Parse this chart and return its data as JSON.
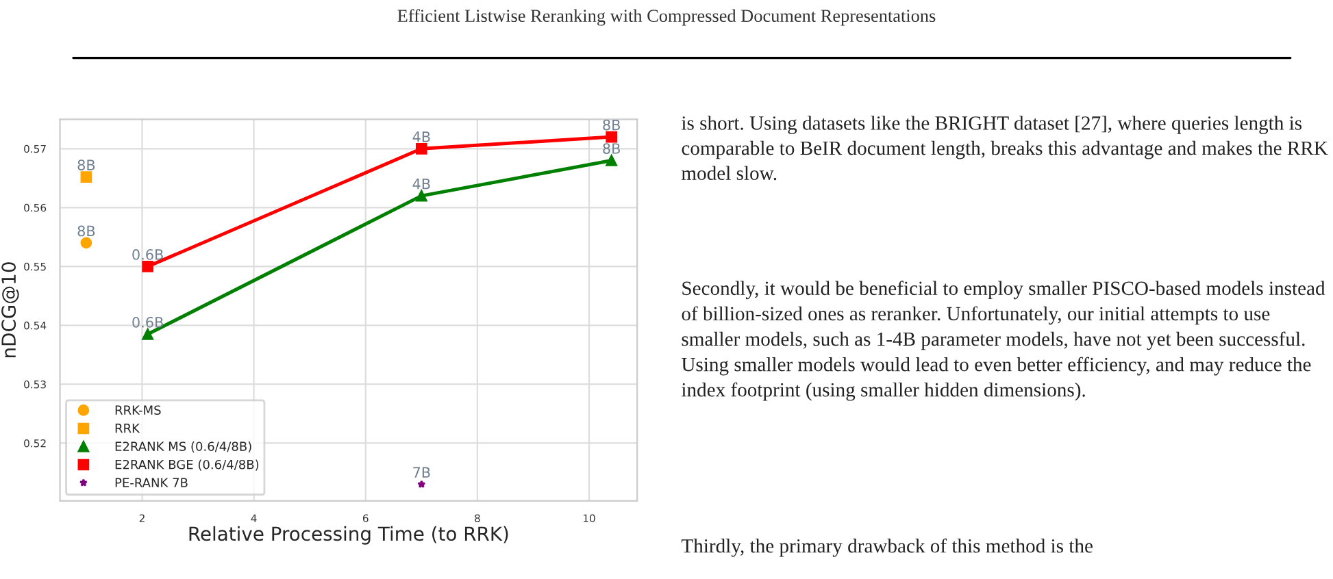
{
  "chart_data": {
    "type": "line",
    "title": "Efficient Listwise Reranking with Compressed Document Representations",
    "xlabel": "Relative Processing Time (to RRK)",
    "ylabel": "nDCG@10",
    "xlim": [
      0.53,
      10.86
    ],
    "xticks": [
      2,
      4,
      6,
      8,
      10
    ],
    "ylim": [
      0.5102,
      0.575
    ],
    "yticks": [
      0.52,
      0.53,
      0.54,
      0.55,
      0.56,
      0.57
    ],
    "grid": true,
    "legend": "bottom left",
    "series": [
      {
        "name": "RRK-MS",
        "type": "scatter",
        "marker": "circle",
        "color": "#ffa500",
        "x": [
          1.0
        ],
        "values": [
          0.554
        ]
      },
      {
        "name": "RRK",
        "type": "scatter",
        "marker": "square",
        "color": "#ffa500",
        "x": [
          1.0
        ],
        "values": [
          0.5652
        ]
      },
      {
        "name": "E2RANK MS (0.6/4/8B)",
        "marker": "triangle",
        "color": "#008000",
        "x": [
          2.1,
          7.0,
          10.4
        ],
        "values": [
          0.5385,
          0.562,
          0.568
        ]
      },
      {
        "name": "E2RANK BGE (0.6/4/8B)",
        "marker": "square",
        "color": "#ff0000",
        "x": [
          2.1,
          7.0,
          10.4
        ],
        "values": [
          0.55,
          0.57,
          0.572
        ]
      },
      {
        "name": "PE-RANK 7B",
        "type": "scatter",
        "marker": "star",
        "color": "#800080",
        "x": [
          7.0
        ],
        "values": [
          0.513
        ]
      }
    ],
    "annotations": [
      {
        "text": "8B",
        "x": 1.0,
        "y": 0.554
      },
      {
        "text": "8B",
        "x": 1.0,
        "y": 0.5652
      },
      {
        "text": "0.6B",
        "x": 2.1,
        "y": 0.5385
      },
      {
        "text": "4B",
        "x": 7.0,
        "y": 0.562
      },
      {
        "text": "8B",
        "x": 10.4,
        "y": 0.568
      },
      {
        "text": "0.6B",
        "x": 2.1,
        "y": 0.55
      },
      {
        "text": "4B",
        "x": 7.0,
        "y": 0.57
      },
      {
        "text": "8B",
        "x": 10.4,
        "y": 0.572
      },
      {
        "text": "7B",
        "x": 7.0,
        "y": 0.513
      },
      "is short. Using datasets like the BRIGHT dataset [27], where queries length is comparable to BeIR document length, breaks this advantage and makes the RRK model slow.",
      "Secondly, it would be beneficial to employ smaller PISCO-based models instead of billion-sized ones as reranker. Unfortunately, our initial attempts to use smaller models, such as 1-4B parameter models, have not yet been successful. Using smaller models would lead to even better efficiency, and may reduce the index footprint (using smaller hidden dimensions).",
      "Thirdly, the primary drawback of this method is the"
    ]
  }
}
